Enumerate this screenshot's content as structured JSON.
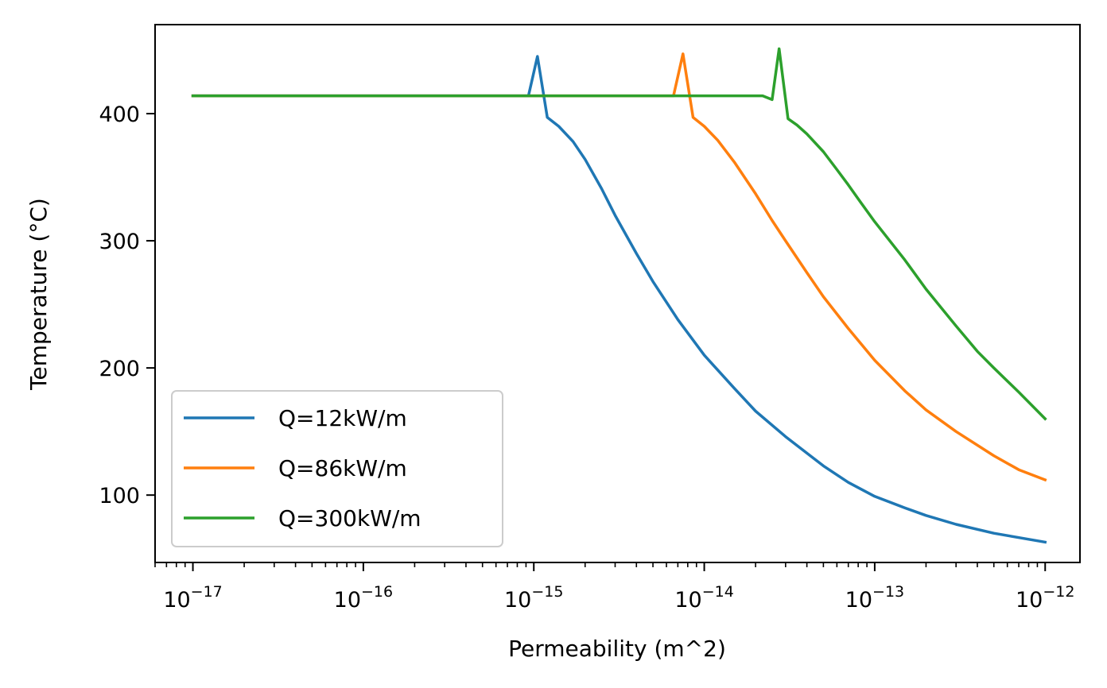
{
  "chart_data": {
    "type": "line",
    "xscale": "log",
    "xlabel": "Permeability (m^2)",
    "ylabel": "Temperature (°C)",
    "xlim": [
      6e-18,
      1.6e-12
    ],
    "ylim": [
      47,
      470
    ],
    "grid": false,
    "legend_position": "lower-left",
    "x_ticks": [
      {
        "base": "10",
        "exp": "−17",
        "value": 1e-17
      },
      {
        "base": "10",
        "exp": "−16",
        "value": 1e-16
      },
      {
        "base": "10",
        "exp": "−15",
        "value": 1e-15
      },
      {
        "base": "10",
        "exp": "−14",
        "value": 1e-14
      },
      {
        "base": "10",
        "exp": "−13",
        "value": 1e-13
      },
      {
        "base": "10",
        "exp": "−12",
        "value": 1e-12
      }
    ],
    "y_ticks": [
      {
        "label": "100",
        "value": 100
      },
      {
        "label": "200",
        "value": 200
      },
      {
        "label": "300",
        "value": 300
      },
      {
        "label": "400",
        "value": 400
      }
    ],
    "series": [
      {
        "name": "Q=12kW/m",
        "color": "#1f77b4",
        "points": [
          [
            1e-17,
            414
          ],
          [
            9.3e-16,
            414
          ],
          [
            1.05e-15,
            445
          ],
          [
            1.2e-15,
            397
          ],
          [
            1.4e-15,
            390
          ],
          [
            1.7e-15,
            378
          ],
          [
            2e-15,
            364
          ],
          [
            2.5e-15,
            341
          ],
          [
            3e-15,
            320
          ],
          [
            4e-15,
            290
          ],
          [
            5e-15,
            268
          ],
          [
            7e-15,
            238
          ],
          [
            1e-14,
            210
          ],
          [
            1.5e-14,
            184
          ],
          [
            2e-14,
            166
          ],
          [
            3e-14,
            146
          ],
          [
            5e-14,
            123
          ],
          [
            7e-14,
            110
          ],
          [
            1e-13,
            99
          ],
          [
            1.5e-13,
            90
          ],
          [
            2e-13,
            84
          ],
          [
            3e-13,
            77
          ],
          [
            5e-13,
            70
          ],
          [
            1e-12,
            63
          ]
        ]
      },
      {
        "name": "Q=86kW/m",
        "color": "#ff7f0e",
        "points": [
          [
            1e-17,
            414
          ],
          [
            6.6e-15,
            414
          ],
          [
            7.5e-15,
            447
          ],
          [
            8.6e-15,
            397
          ],
          [
            1e-14,
            390
          ],
          [
            1.2e-14,
            379
          ],
          [
            1.5e-14,
            362
          ],
          [
            2e-14,
            337
          ],
          [
            2.5e-14,
            316
          ],
          [
            3e-14,
            300
          ],
          [
            4e-14,
            275
          ],
          [
            5e-14,
            256
          ],
          [
            7e-14,
            231
          ],
          [
            1e-13,
            206
          ],
          [
            1.5e-13,
            182
          ],
          [
            2e-13,
            167
          ],
          [
            3e-13,
            150
          ],
          [
            5e-13,
            131
          ],
          [
            7e-13,
            120
          ],
          [
            1e-12,
            112
          ]
        ]
      },
      {
        "name": "Q=300kW/m",
        "color": "#2ca02c",
        "points": [
          [
            1e-17,
            414
          ],
          [
            2.2e-14,
            414
          ],
          [
            2.5e-14,
            411
          ],
          [
            2.75e-14,
            451
          ],
          [
            3.1e-14,
            396
          ],
          [
            3.5e-14,
            391
          ],
          [
            4e-14,
            384
          ],
          [
            5e-14,
            370
          ],
          [
            6e-14,
            356
          ],
          [
            7e-14,
            344
          ],
          [
            8e-14,
            333
          ],
          [
            1e-13,
            315
          ],
          [
            1.5e-13,
            285
          ],
          [
            2e-13,
            262
          ],
          [
            3e-13,
            233
          ],
          [
            4e-13,
            213
          ],
          [
            5e-13,
            200
          ],
          [
            7e-13,
            181
          ],
          [
            1e-12,
            160
          ]
        ]
      }
    ]
  }
}
